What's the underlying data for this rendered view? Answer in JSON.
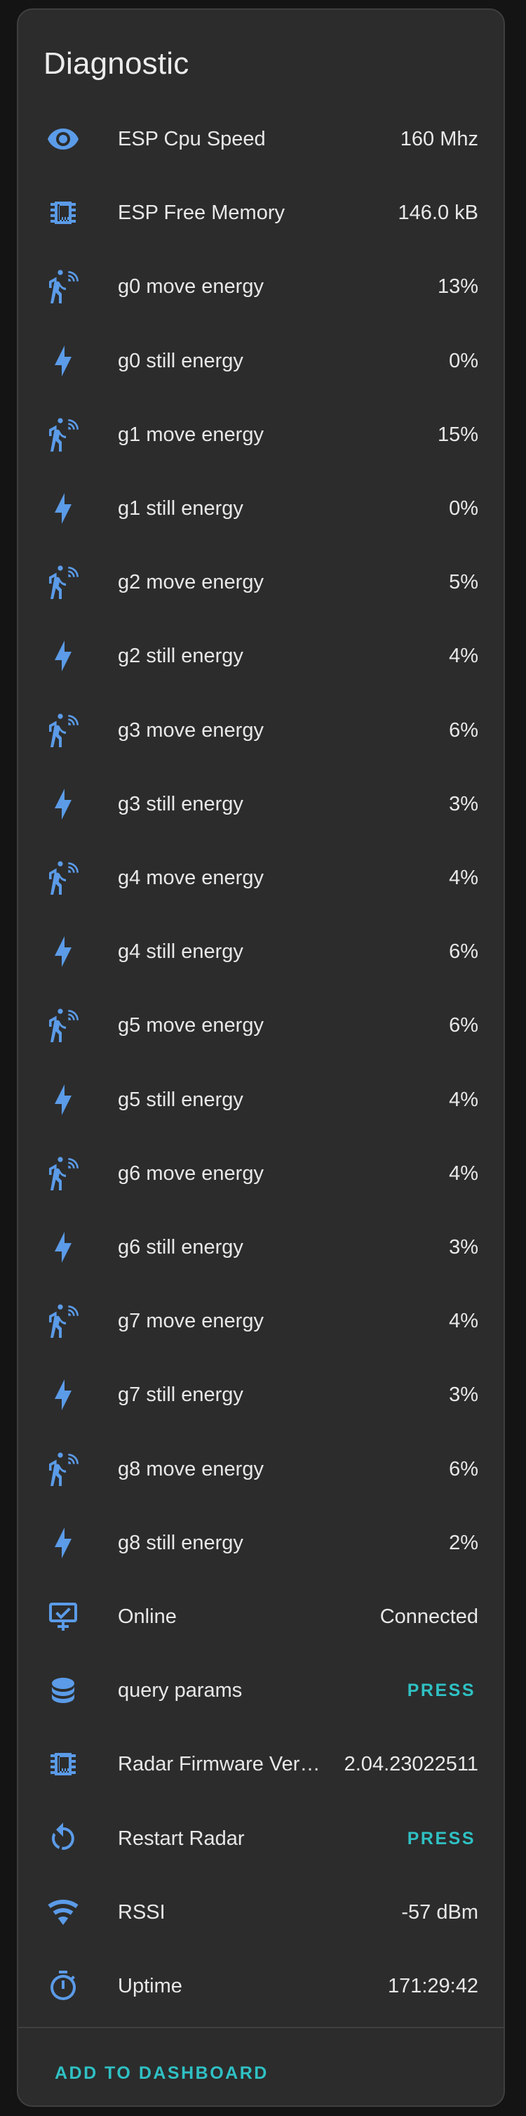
{
  "card": {
    "title": "Diagnostic",
    "footer_button": "ADD TO DASHBOARD"
  },
  "colors": {
    "icon": "#5b9be8",
    "accent": "#2fc1c4",
    "card_bg": "#2c2c2c"
  },
  "rows": [
    {
      "icon": "eye-icon",
      "label": "ESP Cpu Speed",
      "value": "160 Mhz"
    },
    {
      "icon": "chip-icon",
      "label": "ESP Free Memory",
      "value": "146.0 kB"
    },
    {
      "icon": "motion-sensor-icon",
      "label": "g0 move energy",
      "value": "13%"
    },
    {
      "icon": "lightning-bolt-icon",
      "label": "g0 still energy",
      "value": "0%"
    },
    {
      "icon": "motion-sensor-icon",
      "label": "g1 move energy",
      "value": "15%"
    },
    {
      "icon": "lightning-bolt-icon",
      "label": "g1 still energy",
      "value": "0%"
    },
    {
      "icon": "motion-sensor-icon",
      "label": "g2 move energy",
      "value": "5%"
    },
    {
      "icon": "lightning-bolt-icon",
      "label": "g2 still energy",
      "value": "4%"
    },
    {
      "icon": "motion-sensor-icon",
      "label": "g3 move energy",
      "value": "6%"
    },
    {
      "icon": "lightning-bolt-icon",
      "label": "g3 still energy",
      "value": "3%"
    },
    {
      "icon": "motion-sensor-icon",
      "label": "g4 move energy",
      "value": "4%"
    },
    {
      "icon": "lightning-bolt-icon",
      "label": "g4 still energy",
      "value": "6%"
    },
    {
      "icon": "motion-sensor-icon",
      "label": "g5 move energy",
      "value": "6%"
    },
    {
      "icon": "lightning-bolt-icon",
      "label": "g5 still energy",
      "value": "4%"
    },
    {
      "icon": "motion-sensor-icon",
      "label": "g6 move energy",
      "value": "4%"
    },
    {
      "icon": "lightning-bolt-icon",
      "label": "g6 still energy",
      "value": "3%"
    },
    {
      "icon": "motion-sensor-icon",
      "label": "g7 move energy",
      "value": "4%"
    },
    {
      "icon": "lightning-bolt-icon",
      "label": "g7 still energy",
      "value": "3%"
    },
    {
      "icon": "motion-sensor-icon",
      "label": "g8 move energy",
      "value": "6%"
    },
    {
      "icon": "lightning-bolt-icon",
      "label": "g8 still energy",
      "value": "2%"
    },
    {
      "icon": "monitor-check-icon",
      "label": "Online",
      "value": "Connected"
    },
    {
      "icon": "database-icon",
      "label": "query params",
      "button": "PRESS"
    },
    {
      "icon": "chip-icon",
      "label": "Radar Firmware Ver…",
      "value": "2.04.23022511"
    },
    {
      "icon": "restart-icon",
      "label": "Restart Radar",
      "button": "PRESS"
    },
    {
      "icon": "wifi-icon",
      "label": "RSSI",
      "value": "-57 dBm"
    },
    {
      "icon": "timer-icon",
      "label": "Uptime",
      "value": "171:29:42"
    }
  ]
}
